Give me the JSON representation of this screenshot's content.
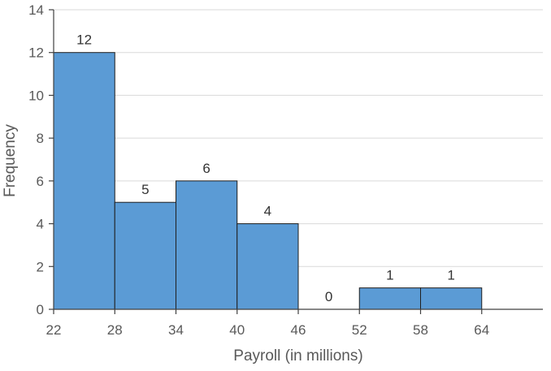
{
  "chart_data": {
    "type": "bar",
    "subtype": "histogram",
    "title": "",
    "xlabel": "Payroll (in millions)",
    "ylabel": "Frequency",
    "bin_edges": [
      22,
      28,
      34,
      40,
      46,
      52,
      58,
      64
    ],
    "x_tick_labels": [
      "22",
      "28",
      "34",
      "40",
      "46",
      "52",
      "58",
      "64"
    ],
    "values": [
      12,
      5,
      6,
      4,
      0,
      1,
      1
    ],
    "data_labels": [
      "12",
      "5",
      "6",
      "4",
      "0",
      "1",
      "1"
    ],
    "xlim": [
      22,
      70
    ],
    "ylim": [
      0,
      14
    ],
    "y_ticks": [
      0,
      2,
      4,
      6,
      8,
      10,
      12,
      14
    ],
    "y_tick_labels": [
      "0",
      "2",
      "4",
      "6",
      "8",
      "10",
      "12",
      "14"
    ],
    "grid": true,
    "legend": "none",
    "bar_color": "#5b9bd5",
    "bar_edge_color": "#1f1f1f"
  }
}
